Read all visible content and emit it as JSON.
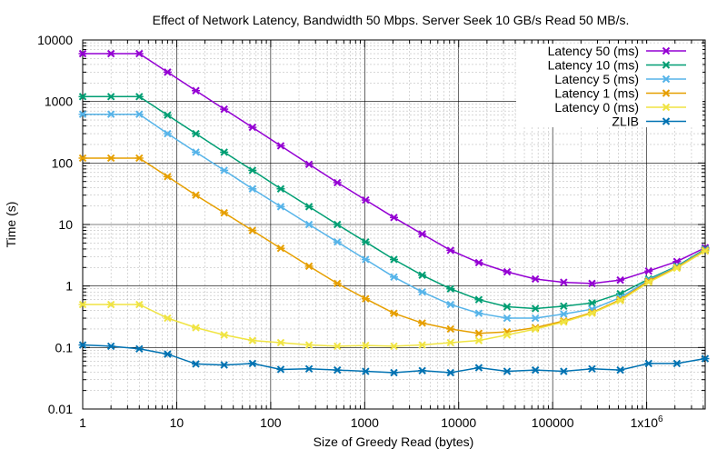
{
  "chart_data": {
    "type": "line",
    "title": "Effect of Network Latency, Bandwidth 50 Mbps. Server Seek 10 GB/s Read 50 MB/s.",
    "xlabel": "Size of Greedy Read (bytes)",
    "ylabel": "Time (s)",
    "xscale": "log",
    "yscale": "log",
    "xlim": [
      1,
      4194304
    ],
    "ylim": [
      0.01,
      10000
    ],
    "grid": true,
    "legend_position": "top-right",
    "x_tick_labels": [
      "1",
      "10",
      "100",
      "1000",
      "10000",
      "100000",
      "1x10^6"
    ],
    "y_tick_labels": [
      "0.01",
      "0.1",
      "1",
      "10",
      "100",
      "1000",
      "10000"
    ],
    "x": [
      1,
      2,
      4,
      8,
      16,
      32,
      64,
      128,
      256,
      512,
      1024,
      2048,
      4096,
      8192,
      16384,
      32768,
      65536,
      131072,
      262144,
      524288,
      1048576,
      2097152,
      4194304
    ],
    "series": [
      {
        "name": "Latency 50 (ms)",
        "color": "#9400d3",
        "values": [
          6000,
          6000,
          6000,
          3000,
          1500,
          750,
          380,
          190,
          95,
          48,
          25,
          13,
          7,
          3.8,
          2.4,
          1.7,
          1.3,
          1.15,
          1.1,
          1.25,
          1.75,
          2.5,
          4.2
        ]
      },
      {
        "name": "Latency 10 (ms)",
        "color": "#009e73",
        "values": [
          1200,
          1200,
          1200,
          600,
          300,
          150,
          76,
          38,
          19.5,
          10,
          5.2,
          2.7,
          1.5,
          0.9,
          0.6,
          0.46,
          0.43,
          0.47,
          0.53,
          0.75,
          1.3,
          2.1,
          4.0
        ]
      },
      {
        "name": "Latency 5 (ms)",
        "color": "#56b4e9",
        "values": [
          620,
          620,
          620,
          300,
          150,
          76,
          38,
          19.5,
          10,
          5.2,
          2.7,
          1.4,
          0.8,
          0.5,
          0.36,
          0.3,
          0.3,
          0.35,
          0.42,
          0.65,
          1.25,
          2.05,
          3.9
        ]
      },
      {
        "name": "Latency 1 (ms)",
        "color": "#e69f00",
        "values": [
          120,
          120,
          120,
          60,
          30,
          15.5,
          8,
          4.1,
          2.1,
          1.1,
          0.62,
          0.36,
          0.25,
          0.2,
          0.17,
          0.18,
          0.21,
          0.27,
          0.37,
          0.6,
          1.2,
          2.0,
          3.8
        ]
      },
      {
        "name": "Latency 0 (ms)",
        "color": "#f0e442",
        "values": [
          0.5,
          0.5,
          0.5,
          0.3,
          0.21,
          0.16,
          0.13,
          0.12,
          0.11,
          0.105,
          0.108,
          0.105,
          0.11,
          0.12,
          0.13,
          0.16,
          0.2,
          0.26,
          0.36,
          0.58,
          1.15,
          1.95,
          3.7
        ]
      },
      {
        "name": "ZLIB",
        "color": "#0072b2",
        "values": [
          0.11,
          0.105,
          0.095,
          0.078,
          0.054,
          0.052,
          0.055,
          0.044,
          0.045,
          0.043,
          0.041,
          0.039,
          0.042,
          0.039,
          0.047,
          0.041,
          0.043,
          0.041,
          0.045,
          0.043,
          0.055,
          0.055,
          0.066
        ]
      }
    ]
  }
}
